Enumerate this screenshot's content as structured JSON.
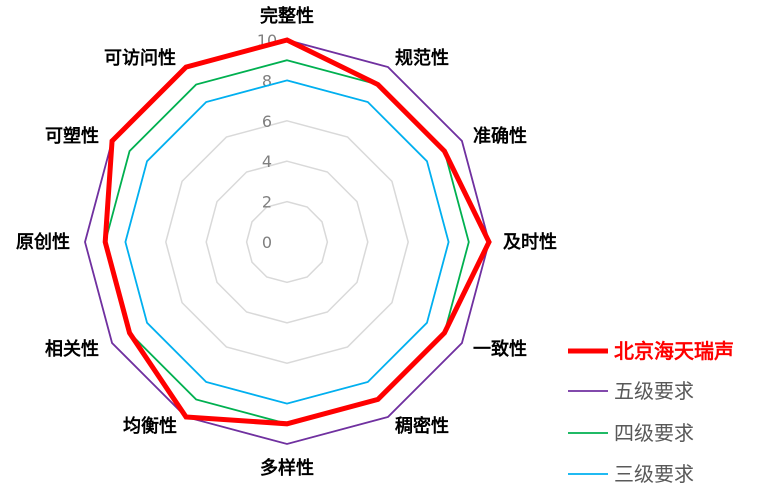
{
  "chart_data": {
    "type": "radar",
    "categories": [
      "完整性",
      "规范性",
      "准确性",
      "及时性",
      "一致性",
      "稠密性",
      "多样性",
      "均衡性",
      "相关性",
      "原创性",
      "可塑性",
      "可访问性"
    ],
    "ticks": [
      "0",
      "2",
      "4",
      "6",
      "8",
      "10"
    ],
    "range": [
      0,
      10
    ],
    "grid": true,
    "legend_position": "right",
    "series": [
      {
        "name": "北京海天瑞声",
        "color": "#FF0000",
        "values": [
          10,
          9,
          9,
          10,
          9,
          9,
          9,
          10,
          9,
          9,
          10,
          10
        ]
      },
      {
        "name": "五级要求",
        "color": "#7030A0",
        "values": [
          10,
          10,
          10,
          10,
          10,
          10,
          10,
          10,
          10,
          10,
          10,
          10
        ]
      },
      {
        "name": "四级要求",
        "color": "#00B050",
        "values": [
          9,
          9,
          9,
          9,
          9,
          9,
          9,
          9,
          9,
          9,
          9,
          9
        ]
      },
      {
        "name": "三级要求",
        "color": "#00B0F0",
        "values": [
          8,
          8,
          8,
          8,
          8,
          8,
          8,
          8,
          8,
          8,
          8,
          8
        ]
      }
    ]
  }
}
